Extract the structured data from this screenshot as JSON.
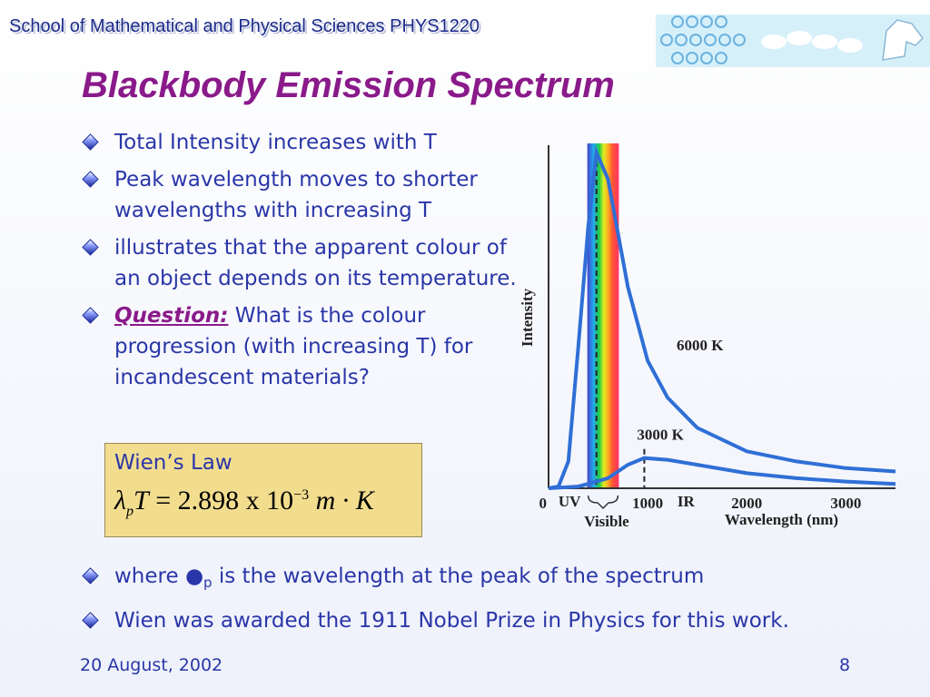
{
  "header": {
    "text": "School of Mathematical and Physical Sciences  PHYS1220"
  },
  "title": "Blackbody Emission Spectrum",
  "bullets_top": [
    {
      "text": "Total Intensity increases with T"
    },
    {
      "text": "Peak wavelength moves to shorter wavelengths with increasing T"
    },
    {
      "text": "illustrates that the apparent colour of an object depends on its temperature."
    },
    {
      "label": "Question:",
      "text": " What is the colour progression (with increasing T) for incandescent materials?"
    }
  ],
  "wien": {
    "title": "Wien’s Law",
    "lambda": "λ",
    "sub_p": "p",
    "T": "T",
    "rest": " = 2.898 x 10",
    "exponent": "−3",
    "units": "m · K"
  },
  "bullets_bottom": [
    {
      "pre": "where ",
      "symbol": "●",
      "sub": "p",
      "post": " is the wavelength at the peak of the spectrum"
    },
    {
      "text": "Wien was awarded the 1911 Nobel Prize in Physics for this work."
    }
  ],
  "footer": {
    "date": "20 August, 2002",
    "page": "8"
  },
  "chart_data": {
    "type": "line",
    "xlabel": "Wavelength (nm)",
    "ylabel": "Intensity",
    "xlim": [
      0,
      3500
    ],
    "x_ticks": [
      "0",
      "1000",
      "2000",
      "3000"
    ],
    "region_labels": [
      "UV",
      "IR",
      "Visible"
    ],
    "series": [
      {
        "name": "6000 K",
        "color": "#2f6fd6",
        "x": [
          0,
          100,
          200,
          300,
          400,
          483,
          600,
          800,
          1000,
          1200,
          1500,
          2000,
          2500,
          3000,
          3500
        ],
        "y": [
          0,
          0.5,
          8,
          42,
          78,
          100,
          92,
          60,
          38,
          27,
          18,
          11,
          8,
          6,
          5
        ]
      },
      {
        "name": "3000 K",
        "color": "#2f6fd6",
        "x": [
          0,
          300,
          600,
          800,
          966,
          1200,
          1500,
          2000,
          2500,
          3000,
          3500
        ],
        "y": [
          0,
          0.5,
          3,
          7,
          9,
          8.5,
          7,
          4.5,
          3,
          2,
          1.3
        ]
      }
    ],
    "visible_band_color_left": "#3344cc",
    "visible_band_color_right": "#ff3344"
  }
}
